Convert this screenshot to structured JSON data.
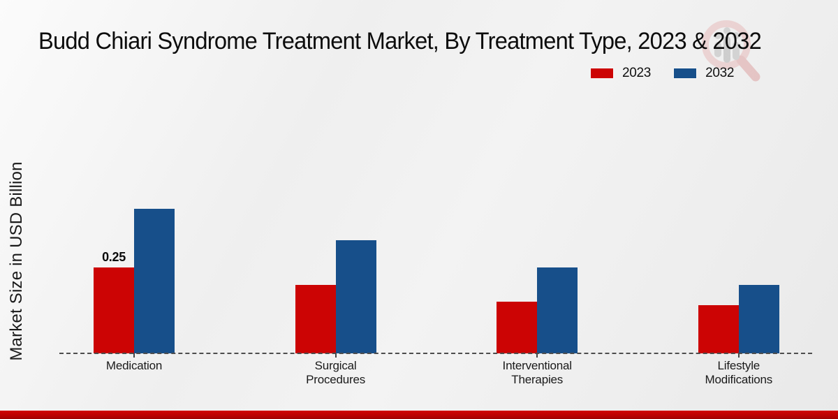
{
  "title": "Budd Chiari Syndrome Treatment Market, By Treatment Type, 2023 & 2032",
  "ylabel": "Market Size in USD Billion",
  "legend": {
    "items": [
      {
        "label": "2023",
        "color": "#cc0404"
      },
      {
        "label": "2032",
        "color": "#174f8a"
      }
    ]
  },
  "colors": {
    "red_2023": "#cc0404",
    "blue_2032": "#174f8a",
    "bottom_band": "#c00000",
    "background": "#efefef",
    "baseline": "#4d4d4d"
  },
  "watermark_icon": "magnifier-bar-chart-logo",
  "chart_data": {
    "type": "bar",
    "title": "Budd Chiari Syndrome Treatment Market, By Treatment Type, 2023 & 2032",
    "xlabel": "",
    "ylabel": "Market Size in USD Billion",
    "categories": [
      "Medication",
      "Surgical Procedures",
      "Interventional Therapies",
      "Lifestyle Modifications"
    ],
    "categories_lines": [
      [
        "Medication"
      ],
      [
        "Surgical",
        "Procedures"
      ],
      [
        "Interventional",
        "Therapies"
      ],
      [
        "Lifestyle",
        "Modifications"
      ]
    ],
    "series": [
      {
        "name": "2023",
        "color": "#cc0404",
        "values": [
          0.25,
          0.2,
          0.15,
          0.14
        ],
        "labels": [
          "0.25",
          null,
          null,
          null
        ]
      },
      {
        "name": "2032",
        "color": "#174f8a",
        "values": [
          0.42,
          0.33,
          0.25,
          0.2
        ],
        "labels": [
          null,
          null,
          null,
          null
        ]
      }
    ],
    "unit": "USD Billion",
    "ylim": [
      0,
      0.45
    ],
    "grid": false,
    "y_axis_visible": false,
    "baseline_style": "dashed",
    "legend_position": "top-right"
  }
}
